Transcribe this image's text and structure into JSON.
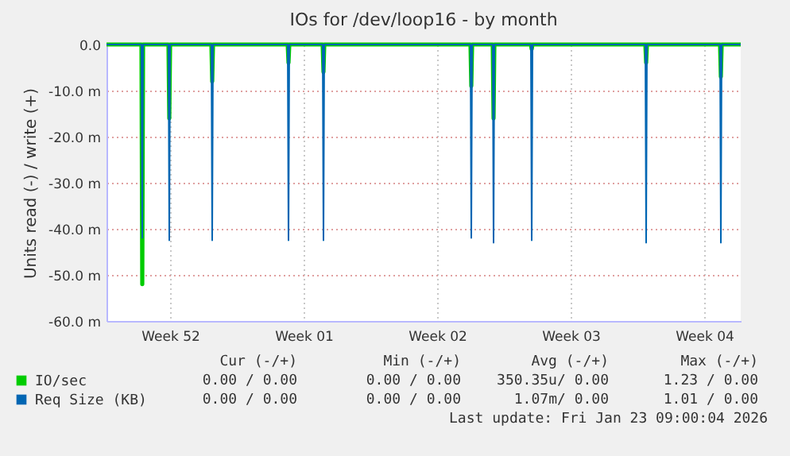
{
  "chart_data": {
    "type": "line",
    "title": "IOs for /dev/loop16 - by month",
    "ylabel": "Units read (-) / write (+)",
    "x": [
      "2025-12-21T03:00",
      "2025-12-22T23:00",
      "2025-12-23T00:00",
      "2025-12-23T01:00",
      "2025-12-24T09:00",
      "2025-12-24T10:00",
      "2025-12-24T11:00",
      "2025-12-26T15:00",
      "2025-12-26T16:00",
      "2025-12-26T17:00",
      "2025-12-30T15:00",
      "2025-12-30T16:00",
      "2025-12-30T17:00",
      "2026-01-01T11:00",
      "2026-01-01T12:00",
      "2026-01-01T13:00",
      "2026-01-09T05:00",
      "2026-01-09T06:00",
      "2026-01-09T07:00",
      "2026-01-10T09:00",
      "2026-01-10T10:00",
      "2026-01-10T11:00",
      "2026-01-12T09:00",
      "2026-01-12T10:00",
      "2026-01-12T11:00",
      "2026-01-18T09:00",
      "2026-01-18T10:00",
      "2026-01-18T11:00",
      "2026-01-22T07:00",
      "2026-01-22T08:00",
      "2026-01-22T09:00",
      "2026-01-23T09:00"
    ],
    "series": [
      {
        "name": "IO/sec",
        "color": "#00cc00",
        "values": [
          0,
          0,
          -52,
          0,
          0,
          -16,
          0,
          0,
          -8,
          0,
          0,
          -4,
          0,
          0,
          -6,
          0,
          0,
          -9,
          0,
          0,
          -16,
          0,
          0,
          -1,
          0,
          0,
          -4,
          0,
          0,
          -7,
          0,
          0
        ]
      },
      {
        "name": "Req Size (KB)",
        "color": "#0066b3",
        "values": [
          0,
          0,
          -42,
          0,
          0,
          -42.5,
          0,
          0,
          -42.5,
          0,
          0,
          -42.5,
          0,
          0,
          -42.5,
          0,
          0,
          -42,
          0,
          0,
          -43,
          0,
          0,
          -42.5,
          0,
          0,
          -43,
          0,
          0,
          -43,
          0,
          0
        ]
      }
    ],
    "xlim": [
      "2025-12-21T03:00",
      "2026-01-23T09:00"
    ],
    "xticks": [
      {
        "value": "2025-12-24T11:00",
        "label": "Week 52"
      },
      {
        "value": "2025-12-31T11:00",
        "label": "Week 01"
      },
      {
        "value": "2026-01-07T11:00",
        "label": "Week 02"
      },
      {
        "value": "2026-01-14T11:00",
        "label": "Week 03"
      },
      {
        "value": "2026-01-21T11:00",
        "label": "Week 04"
      }
    ],
    "ylim": [
      -60,
      0
    ],
    "yticks": [
      {
        "value": -60,
        "label": "-60.0 m"
      },
      {
        "value": -50,
        "label": "-50.0 m"
      },
      {
        "value": -40,
        "label": "-40.0 m"
      },
      {
        "value": -30,
        "label": "-30.0 m"
      },
      {
        "value": -20,
        "label": "-20.0 m"
      },
      {
        "value": -10,
        "label": "-10.0 m"
      },
      {
        "value": 0,
        "label": "0.0"
      }
    ],
    "grid": true,
    "legend": "bottom left",
    "annotations": [
      "Cur (-/+)",
      "Min (-/+)",
      "Avg (-/+)",
      "Max (-/+)",
      "0.00 / 0.00",
      "0.00 / 0.00",
      "350.35u/ 0.00",
      "1.23 / 0.00",
      "0.00 / 0.00",
      "0.00 / 0.00",
      "1.07m/ 0.00",
      "1.01 / 0.00",
      "Last update: Fri Jan 23 09:00:04 2026"
    ]
  }
}
